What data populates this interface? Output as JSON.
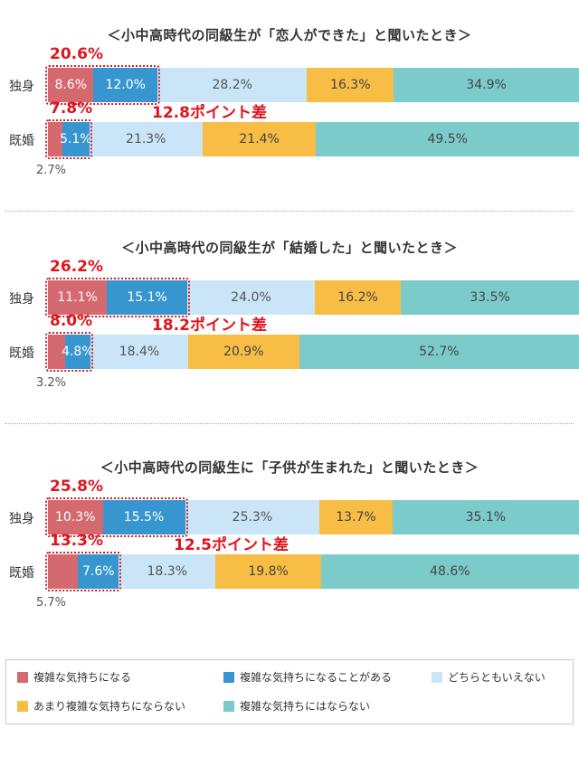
{
  "chart_data": {
    "type": "stacked-bar-horizontal",
    "legend_position": "bottom",
    "legend": [
      {
        "name": "複雑な気持ちになる",
        "color": "#d46a6f"
      },
      {
        "name": "複雑な気持ちになることがある",
        "color": "#3796cf"
      },
      {
        "name": "どちらともいえない",
        "color": "#c9e5f7"
      },
      {
        "name": "あまり複雑な気持ちにならない",
        "color": "#f7bd45"
      },
      {
        "name": "複雑な気持ちにはならない",
        "color": "#7ccbcb"
      }
    ],
    "groups": [
      {
        "title": "＜小中高時代の同級生が「恋人ができた」と聞いたとき＞",
        "rows": [
          {
            "label": "独身",
            "values": [
              8.6,
              12.0,
              28.2,
              16.3,
              34.9
            ],
            "value_labels": [
              "8.6%",
              "12.0%",
              "28.2%",
              "16.3%",
              "34.9%"
            ],
            "total_label": "20.6%"
          },
          {
            "label": "既婚",
            "values": [
              2.7,
              5.1,
              21.3,
              21.4,
              49.5
            ],
            "value_labels": [
              "2.7%",
              "5.1%",
              "21.3%",
              "21.4%",
              "49.5%"
            ],
            "total_label": "7.8%"
          }
        ],
        "diff_label": "12.8ポイント差"
      },
      {
        "title": "＜小中高時代の同級生が「結婚した」と聞いたとき＞",
        "rows": [
          {
            "label": "独身",
            "values": [
              11.1,
              15.1,
              24.0,
              16.2,
              33.5
            ],
            "value_labels": [
              "11.1%",
              "15.1%",
              "24.0%",
              "16.2%",
              "33.5%"
            ],
            "total_label": "26.2%"
          },
          {
            "label": "既婚",
            "values": [
              3.2,
              4.8,
              18.4,
              20.9,
              52.7
            ],
            "value_labels": [
              "3.2%",
              "4.8%",
              "18.4%",
              "20.9%",
              "52.7%"
            ],
            "total_label": "8.0%"
          }
        ],
        "diff_label": "18.2ポイント差"
      },
      {
        "title": "＜小中高時代の同級生に「子供が生まれた」と聞いたとき＞",
        "rows": [
          {
            "label": "独身",
            "values": [
              10.3,
              15.5,
              25.3,
              13.7,
              35.1
            ],
            "value_labels": [
              "10.3%",
              "15.5%",
              "25.3%",
              "13.7%",
              "35.1%"
            ],
            "total_label": "25.8%"
          },
          {
            "label": "既婚",
            "values": [
              5.7,
              7.6,
              18.3,
              19.8,
              48.6
            ],
            "value_labels": [
              "5.7%",
              "7.6%",
              "18.3%",
              "19.8%",
              "48.6%"
            ],
            "total_label": "13.3%"
          }
        ],
        "diff_label": "12.5ポイント差"
      }
    ]
  }
}
